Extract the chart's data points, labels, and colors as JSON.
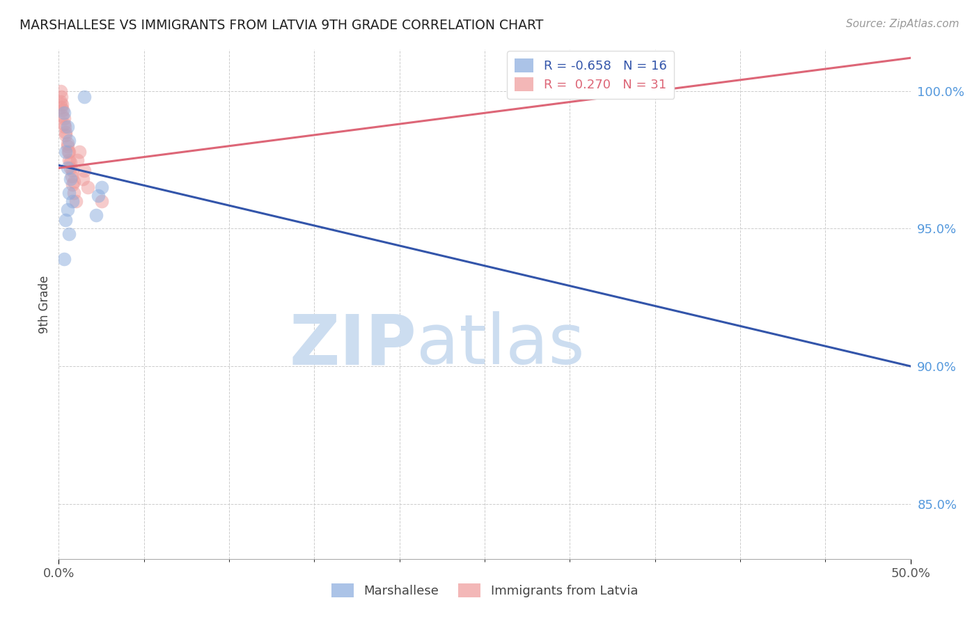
{
  "title": "MARSHALLESE VS IMMIGRANTS FROM LATVIA 9TH GRADE CORRELATION CHART",
  "source": "Source: ZipAtlas.com",
  "ylabel": "9th Grade",
  "xlim": [
    0.0,
    50.0
  ],
  "ylim": [
    83.0,
    101.5
  ],
  "blue_label": "Marshallese",
  "pink_label": "Immigrants from Latvia",
  "blue_R": -0.658,
  "blue_N": 16,
  "pink_R": 0.27,
  "pink_N": 31,
  "blue_scatter_x": [
    1.5,
    0.3,
    0.5,
    0.6,
    0.4,
    0.5,
    0.7,
    0.6,
    0.8,
    0.5,
    0.4,
    0.6,
    2.2,
    2.3,
    2.5,
    0.3
  ],
  "blue_scatter_y": [
    99.8,
    99.2,
    98.7,
    98.2,
    97.8,
    97.2,
    96.8,
    96.3,
    96.0,
    95.7,
    95.3,
    94.8,
    95.5,
    96.2,
    96.5,
    93.9
  ],
  "pink_scatter_x": [
    0.1,
    0.15,
    0.2,
    0.25,
    0.3,
    0.35,
    0.4,
    0.5,
    0.55,
    0.6,
    0.7,
    0.75,
    0.8,
    0.9,
    1.0,
    1.1,
    1.2,
    1.4,
    1.5,
    1.7,
    0.1,
    0.15,
    0.2,
    0.3,
    0.4,
    0.5,
    0.6,
    0.7,
    0.8,
    0.9,
    2.5
  ],
  "pink_scatter_y": [
    100.0,
    99.8,
    99.5,
    99.3,
    99.0,
    98.7,
    98.4,
    98.0,
    97.8,
    97.5,
    97.2,
    96.9,
    96.6,
    96.3,
    96.0,
    97.5,
    97.8,
    96.8,
    97.1,
    96.5,
    99.6,
    99.4,
    99.1,
    98.8,
    98.5,
    98.1,
    97.8,
    97.4,
    97.1,
    96.7,
    96.0
  ],
  "blue_line_x": [
    0.0,
    50.0
  ],
  "blue_line_y": [
    97.3,
    90.0
  ],
  "pink_line_x": [
    0.0,
    50.0
  ],
  "pink_line_y": [
    97.2,
    101.2
  ],
  "blue_color": "#88AADD",
  "pink_color": "#EE9999",
  "blue_line_color": "#3355AA",
  "pink_line_color": "#DD6677",
  "watermark_zip": "ZIP",
  "watermark_atlas": "atlas",
  "grid_color": "#CCCCCC",
  "ytick_color": "#5599DD",
  "xtick_color": "#555555",
  "background_color": "#FFFFFF",
  "ytick_vals": [
    85.0,
    90.0,
    95.0,
    100.0
  ],
  "ytick_labels": [
    "85.0%",
    "90.0%",
    "95.0%",
    "100.0%"
  ],
  "xtick_major": [
    0.0,
    50.0
  ],
  "xtick_minor": [
    5.0,
    10.0,
    15.0,
    20.0,
    25.0,
    30.0,
    35.0,
    40.0,
    45.0
  ]
}
